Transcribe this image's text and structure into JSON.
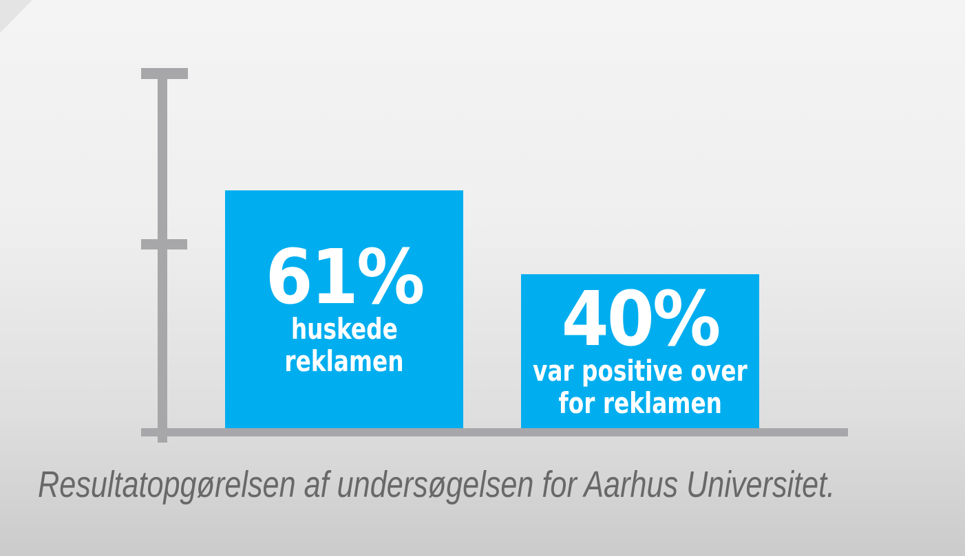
{
  "chart_data": {
    "type": "bar",
    "categories": [
      "huskede reklamen",
      "var positive over for reklamen"
    ],
    "values": [
      61,
      40
    ],
    "unit": "%",
    "value_labels": [
      "61%",
      "40%"
    ],
    "title": "",
    "xlabel": "",
    "ylabel": "",
    "ylim": [
      0,
      100
    ],
    "grid": false,
    "legend_position": "none",
    "caption": "Resultatopgørelsen af undersøgelsen for Aarhus Universitet.",
    "bar_color": "#00aeef",
    "axis_color": "#a7a7aa",
    "bar_text_color": "#ffffff",
    "caption_color": "#686868"
  },
  "bars": [
    {
      "value_label": "61%",
      "label_lines": [
        "huskede",
        "reklamen"
      ]
    },
    {
      "value_label": "40%",
      "label_lines": [
        "var positive over",
        "for reklamen"
      ]
    }
  ],
  "caption": {
    "text": "Resultatopgørelsen af undersøgelsen for Aarhus Universitet."
  }
}
